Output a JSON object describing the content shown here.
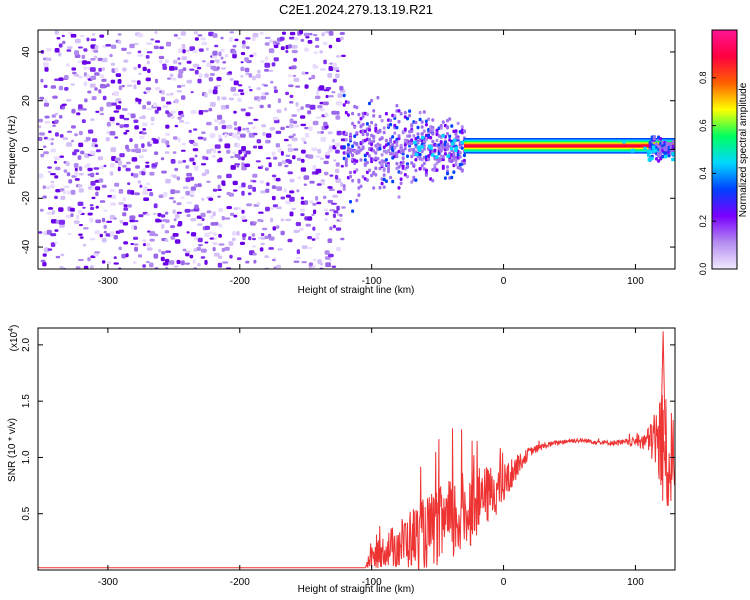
{
  "title": "C2E1.2024.279.13.19.R21",
  "chart_data": [
    {
      "type": "heatmap",
      "xlabel": "Height of straight line (km)",
      "ylabel": "Frequency (Hz)",
      "xlim": [
        -353,
        130
      ],
      "ylim": [
        -49,
        49
      ],
      "xticks": [
        -300,
        -200,
        -100,
        0,
        100
      ],
      "yticks": [
        -40,
        -20,
        0,
        20,
        40
      ],
      "colorbar": {
        "label": "Normalized spectral amplitude",
        "range": [
          0.0,
          1.0
        ],
        "ticks": [
          "0.0",
          "0.2",
          "0.4",
          "0.6",
          "0.8"
        ],
        "tick_values": [
          0.0,
          0.2,
          0.4,
          0.6,
          0.8
        ],
        "colors": [
          "#f2eaff",
          "#b48cf0",
          "#7a00ff",
          "#0040ff",
          "#00d8ff",
          "#00ff60",
          "#ffff00",
          "#ff6000",
          "#ff0040",
          "#ff1493"
        ]
      },
      "regions": [
        {
          "x_range": [
            -353,
            -122
          ],
          "freq_range": [
            -49,
            49
          ],
          "amplitude": "noise",
          "level": [
            0.0,
            0.2
          ]
        },
        {
          "x_range": [
            -122,
            -30
          ],
          "freq_range": [
            -30,
            28
          ],
          "amplitude": "broadband",
          "level": [
            0.1,
            0.35
          ]
        },
        {
          "x_range": [
            -30,
            130
          ],
          "freq_center": 1.5,
          "amplitude": "tone",
          "level": [
            0.9,
            1.0
          ]
        },
        {
          "x_range": [
            110,
            130
          ],
          "freq_range": [
            -5,
            8
          ],
          "amplitude": "broadband",
          "level": [
            0.2,
            0.4
          ]
        }
      ]
    },
    {
      "type": "line",
      "xlabel": "Height of straight line (km)",
      "ylabel": "SNR (10 * v/v)",
      "y_multiplier": "(x10",
      "y_multiplier_exp": "4",
      "y_multiplier_close": ")",
      "xlim": [
        -353,
        130
      ],
      "ylim": [
        0,
        2.15
      ],
      "xticks": [
        -300,
        -200,
        -100,
        0,
        100
      ],
      "yticks": [
        "0.5",
        "1.0",
        "1.5",
        "2.0"
      ],
      "ytick_values": [
        0.5,
        1.0,
        1.5,
        2.0
      ],
      "series": [
        {
          "color": "#ee3333",
          "x": [
            -353,
            -300,
            -250,
            -200,
            -150,
            -105,
            -100,
            -90,
            -80,
            -70,
            -60,
            -50,
            -40,
            -30,
            -20,
            -10,
            0,
            10,
            20,
            30,
            40,
            50,
            60,
            70,
            80,
            90,
            100,
            110,
            115,
            120,
            125,
            130
          ],
          "y": [
            0.02,
            0.02,
            0.02,
            0.02,
            0.02,
            0.02,
            0.1,
            0.18,
            0.22,
            0.28,
            0.32,
            0.38,
            0.42,
            0.5,
            0.6,
            0.68,
            0.75,
            0.92,
            1.05,
            1.1,
            1.13,
            1.15,
            1.15,
            1.14,
            1.13,
            1.13,
            1.14,
            1.15,
            1.18,
            1.1,
            0.95,
            1.05
          ],
          "envelope": [
            0.0,
            0.0,
            0.0,
            0.0,
            0.0,
            0.0,
            0.1,
            0.15,
            0.22,
            0.28,
            0.32,
            0.35,
            0.4,
            0.38,
            0.3,
            0.25,
            0.2,
            0.1,
            0.04,
            0.03,
            0.02,
            0.02,
            0.02,
            0.02,
            0.02,
            0.03,
            0.04,
            0.12,
            0.3,
            0.55,
            0.5,
            0.3
          ]
        }
      ]
    }
  ]
}
